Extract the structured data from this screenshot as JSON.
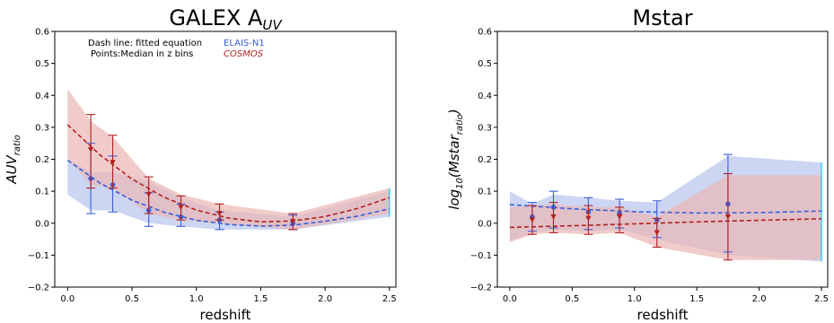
{
  "chart_data": [
    {
      "type": "line",
      "title": "GALEX A_UV",
      "title_parts": {
        "main": "GALEX A",
        "sub": "UV"
      },
      "xlabel": "redshift",
      "ylabel": "AUV_ratio",
      "ylabel_parts": {
        "main": "AUV",
        "sub": "ratio"
      },
      "xlim": [
        -0.1,
        2.55
      ],
      "ylim": [
        -0.2,
        0.6
      ],
      "xticks": [
        "0.0",
        "0.5",
        "1.0",
        "1.5",
        "2.0",
        "2.5"
      ],
      "yticks": [
        "−0.2",
        "−0.1",
        "0.0",
        "0.1",
        "0.2",
        "0.3",
        "0.4",
        "0.5",
        "0.6"
      ],
      "grid": false,
      "annotations": [
        "Dash line: fitted equation",
        "Points:Median in z bins"
      ],
      "legend": [
        "ELAIS-N1",
        "COSMOS"
      ],
      "series": [
        {
          "name": "ELAIS-N1",
          "color": "#3b5fd9",
          "band_color": "#b9c6ee",
          "edge_color": "#19d3f3",
          "fit": {
            "x": [
              0.0,
              0.25,
              0.5,
              0.75,
              1.0,
              1.25,
              1.5,
              1.75,
              2.0,
              2.25,
              2.5
            ],
            "y": [
              0.197,
              0.126,
              0.072,
              0.034,
              0.009,
              -0.004,
              -0.009,
              -0.006,
              0.006,
              0.022,
              0.045
            ]
          },
          "band": {
            "x": [
              0.0,
              0.18,
              0.35,
              0.63,
              0.88,
              1.18,
              1.75,
              2.5
            ],
            "lower": [
              0.09,
              0.04,
              0.04,
              0.0,
              -0.01,
              -0.02,
              -0.02,
              0.02
            ],
            "upper": [
              0.2,
              0.16,
              0.16,
              0.13,
              0.08,
              0.04,
              0.02,
              0.1
            ]
          },
          "points": {
            "x": [
              0.18,
              0.35,
              0.63,
              0.88,
              1.18,
              1.75
            ],
            "y": [
              0.14,
              0.12,
              0.04,
              0.02,
              0.01,
              0.0
            ],
            "err_low": [
              0.03,
              0.035,
              -0.01,
              -0.01,
              -0.02,
              -0.02
            ],
            "err_high": [
              0.25,
              0.21,
              0.095,
              0.06,
              0.035,
              0.025
            ]
          }
        },
        {
          "name": "COSMOS",
          "color": "#b22222",
          "band_color": "#eab7b5",
          "edge_color": "#19d3f3",
          "fit": {
            "x": [
              0.0,
              0.25,
              0.5,
              0.75,
              1.0,
              1.25,
              1.5,
              1.75,
              2.0,
              2.25,
              2.5
            ],
            "y": [
              0.308,
              0.214,
              0.138,
              0.081,
              0.041,
              0.016,
              0.004,
              0.007,
              0.021,
              0.046,
              0.08
            ]
          },
          "band": {
            "x": [
              0.0,
              0.18,
              0.35,
              0.63,
              0.88,
              1.18,
              1.75,
              2.5
            ],
            "lower": [
              0.2,
              0.12,
              0.11,
              0.03,
              0.01,
              0.0,
              -0.02,
              0.03
            ],
            "upper": [
              0.42,
              0.32,
              0.27,
              0.14,
              0.09,
              0.06,
              0.03,
              0.11
            ]
          },
          "points": {
            "x": [
              0.18,
              0.35,
              0.63,
              0.88,
              1.18,
              1.75
            ],
            "y": [
              0.23,
              0.19,
              0.09,
              0.05,
              0.03,
              0.005
            ],
            "err_low": [
              0.11,
              0.11,
              0.03,
              0.01,
              0.01,
              -0.02
            ],
            "err_high": [
              0.34,
              0.275,
              0.145,
              0.085,
              0.06,
              0.03
            ]
          }
        }
      ]
    },
    {
      "type": "line",
      "title": "Mstar",
      "xlabel": "redshift",
      "ylabel": "log_10(Mstar_ratio)",
      "ylabel_parts": {
        "pre": "log",
        "sub1": "10",
        "mid": "(Mstar",
        "sub2": "ratio",
        "post": ")"
      },
      "xlim": [
        -0.1,
        2.55
      ],
      "ylim": [
        -0.2,
        0.6
      ],
      "xticks": [
        "0.0",
        "0.5",
        "1.0",
        "1.5",
        "2.0",
        "2.5"
      ],
      "yticks": [
        "−0.2",
        "−0.1",
        "0.0",
        "0.1",
        "0.2",
        "0.3",
        "0.4",
        "0.5",
        "0.6"
      ],
      "grid": false,
      "series": [
        {
          "name": "ELAIS-N1",
          "color": "#3b5fd9",
          "band_color": "#b9c6ee",
          "edge_color": "#19d3f3",
          "fit": {
            "x": [
              0.0,
              0.5,
              1.0,
              1.5,
              2.0,
              2.5
            ],
            "y": [
              0.058,
              0.045,
              0.036,
              0.032,
              0.033,
              0.038
            ]
          },
          "band": {
            "x": [
              0.0,
              0.18,
              0.35,
              0.63,
              0.88,
              1.18,
              1.75,
              2.5
            ],
            "lower": [
              -0.055,
              -0.03,
              -0.02,
              -0.025,
              -0.02,
              -0.05,
              -0.1,
              -0.12
            ],
            "upper": [
              0.1,
              0.06,
              0.09,
              0.08,
              0.07,
              0.065,
              0.21,
              0.19
            ]
          },
          "points": {
            "x": [
              0.18,
              0.35,
              0.63,
              0.88,
              1.18,
              1.75
            ],
            "y": [
              0.02,
              0.05,
              0.035,
              0.03,
              0.01,
              0.06
            ],
            "err_low": [
              -0.025,
              -0.015,
              -0.02,
              -0.015,
              -0.045,
              -0.09
            ],
            "err_high": [
              0.065,
              0.1,
              0.08,
              0.075,
              0.07,
              0.215
            ]
          }
        },
        {
          "name": "COSMOS",
          "color": "#b22222",
          "band_color": "#eab7b5",
          "edge_color": "#19d3f3",
          "fit": {
            "x": [
              0.0,
              0.5,
              1.0,
              1.5,
              2.0,
              2.5
            ],
            "y": [
              -0.013,
              -0.008,
              -0.002,
              0.004,
              0.009,
              0.014
            ]
          },
          "band": {
            "x": [
              0.0,
              0.18,
              0.35,
              0.63,
              0.88,
              1.18,
              1.75,
              2.5
            ],
            "lower": [
              -0.06,
              -0.035,
              -0.03,
              -0.035,
              -0.03,
              -0.075,
              -0.115,
              -0.115
            ],
            "upper": [
              0.05,
              0.055,
              0.06,
              0.05,
              0.05,
              0.02,
              0.15,
              0.15
            ]
          },
          "points": {
            "x": [
              0.18,
              0.35,
              0.63,
              0.88,
              1.18,
              1.75
            ],
            "y": [
              0.01,
              0.02,
              0.015,
              0.02,
              -0.03,
              0.02
            ],
            "err_low": [
              -0.035,
              -0.03,
              -0.035,
              -0.03,
              -0.075,
              -0.115
            ],
            "err_high": [
              0.055,
              0.065,
              0.055,
              0.05,
              0.015,
              0.155
            ]
          }
        }
      ]
    }
  ]
}
